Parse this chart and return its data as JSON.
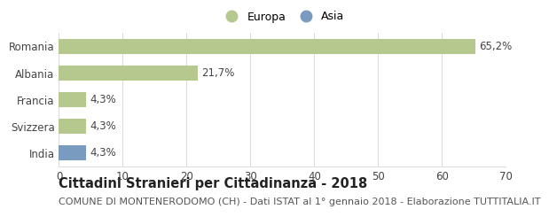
{
  "categories": [
    "Romania",
    "Albania",
    "Francia",
    "Svizzera",
    "India"
  ],
  "values": [
    65.2,
    21.7,
    4.3,
    4.3,
    4.3
  ],
  "labels": [
    "65,2%",
    "21,7%",
    "4,3%",
    "4,3%",
    "4,3%"
  ],
  "bar_colors": [
    "#b5c98e",
    "#b5c98e",
    "#b5c98e",
    "#b5c98e",
    "#7a9bc0"
  ],
  "legend_items": [
    {
      "label": "Europa",
      "color": "#b5c98e"
    },
    {
      "label": "Asia",
      "color": "#7a9bc0"
    }
  ],
  "xlim": [
    0,
    70
  ],
  "xticks": [
    0,
    10,
    20,
    30,
    40,
    50,
    60,
    70
  ],
  "title": "Cittadini Stranieri per Cittadinanza - 2018",
  "subtitle": "COMUNE DI MONTENERODOMO (CH) - Dati ISTAT al 1° gennaio 2018 - Elaborazione TUTTITALIA.IT",
  "title_fontsize": 10.5,
  "subtitle_fontsize": 8,
  "bar_height": 0.55,
  "background_color": "#ffffff",
  "grid_color": "#dddddd",
  "label_fontsize": 8.5,
  "tick_fontsize": 8.5,
  "ytick_fontsize": 8.5
}
